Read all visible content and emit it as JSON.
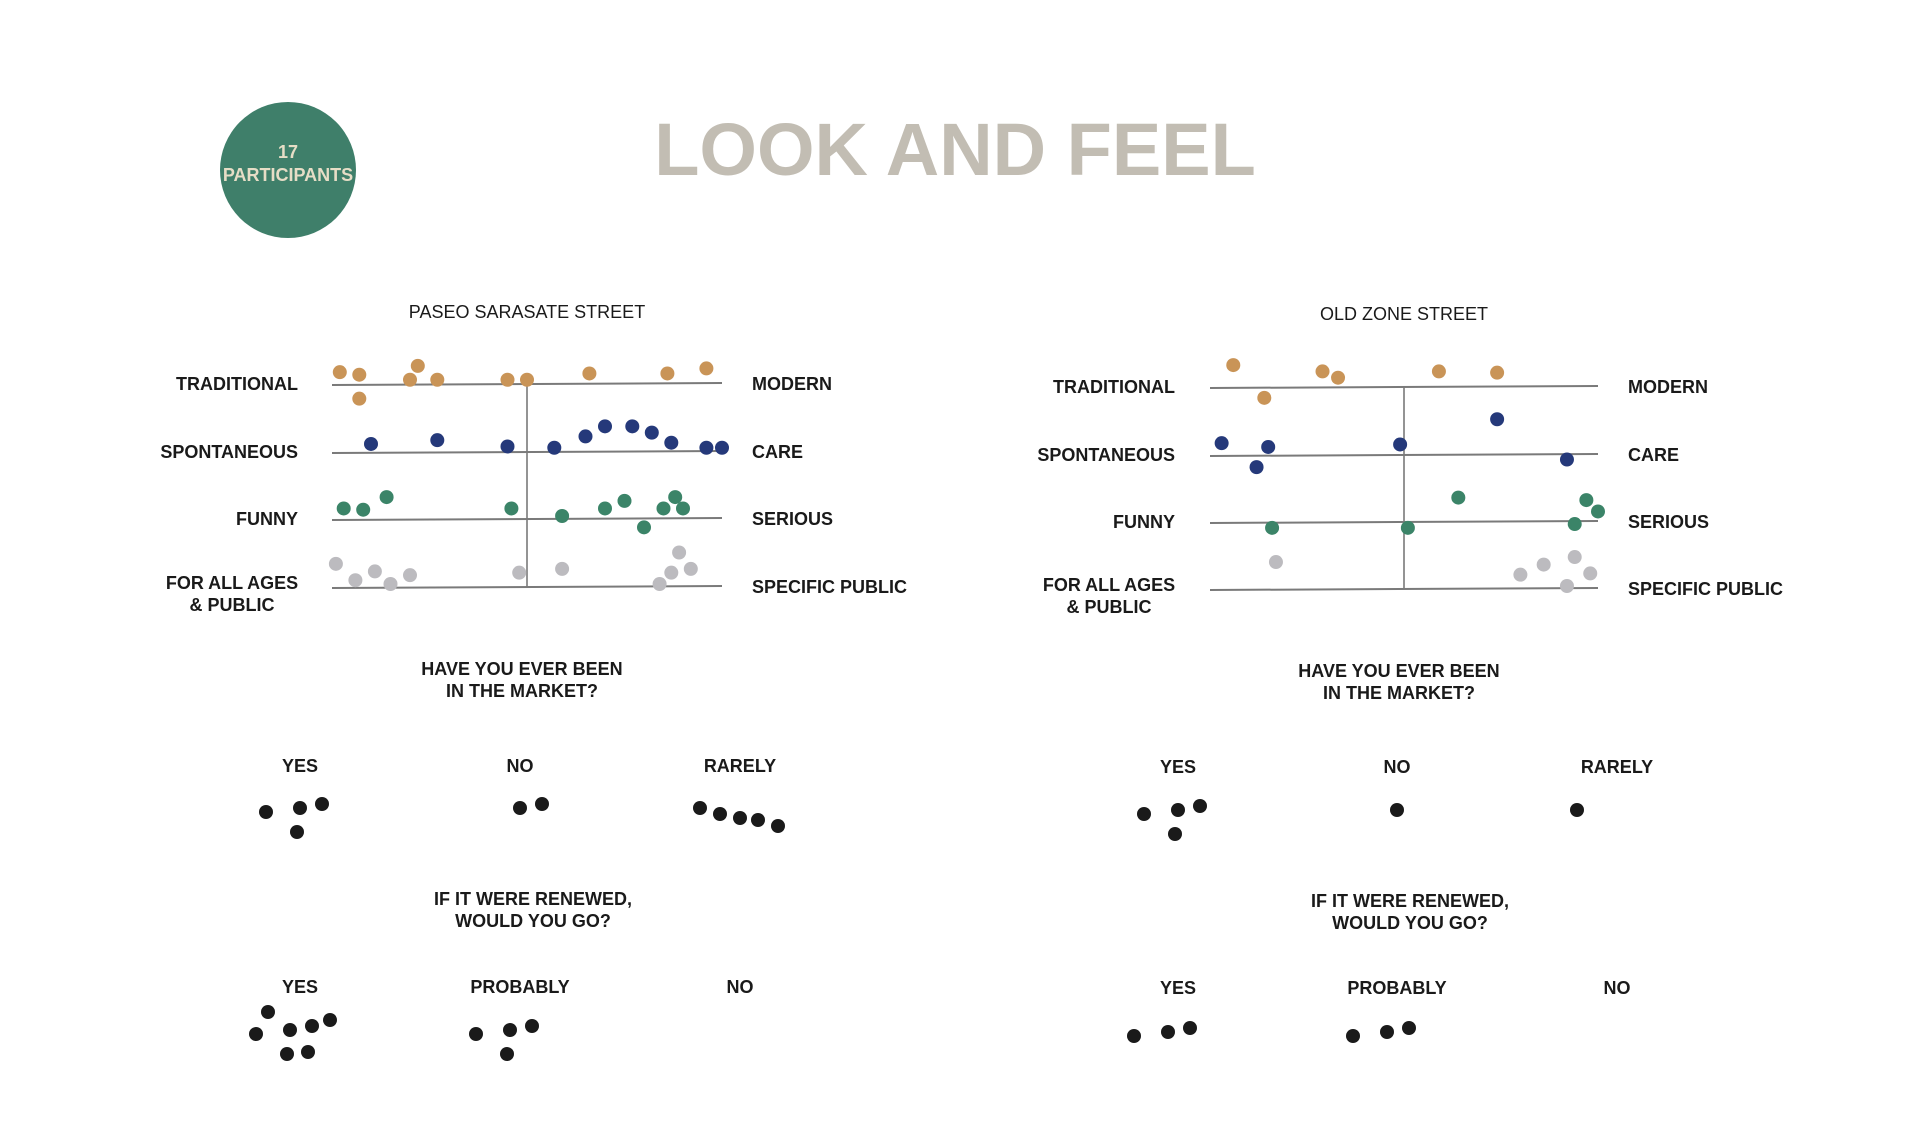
{
  "title": "LOOK AND FEEL",
  "badge": {
    "number": "17",
    "label": "PARTICIPANTS",
    "color": "#3f7f6a"
  },
  "colors": {
    "traditional_modern": "#c99457",
    "spontaneous_care": "#25397a",
    "funny_serious": "#3b8468",
    "ages_public": "#bcbbbf",
    "vote_dot": "#1a1a1a",
    "axis_line": "#7a7a7a",
    "title": "#c2bdb3"
  },
  "chart_data": [
    {
      "type": "scatter",
      "title": "PASEO SARASATE STREET",
      "x_range": [
        0,
        1
      ],
      "center_divider": true,
      "scales": [
        {
          "left": "TRADITIONAL",
          "right": "MODERN",
          "color_key": "traditional_modern",
          "points": [
            [
              0.02,
              0.7
            ],
            [
              0.07,
              0.5
            ],
            [
              0.07,
              -1.4
            ],
            [
              0.2,
              0.1
            ],
            [
              0.22,
              1.2
            ],
            [
              0.27,
              0.1
            ],
            [
              0.45,
              0.1
            ],
            [
              0.5,
              0.1
            ],
            [
              0.66,
              0.6
            ],
            [
              0.86,
              0.6
            ],
            [
              0.96,
              1.0
            ]
          ]
        },
        {
          "left": "SPONTANEOUS",
          "right": "CARE",
          "color_key": "spontaneous_care",
          "points": [
            [
              0.1,
              0.4
            ],
            [
              0.27,
              0.7
            ],
            [
              0.45,
              0.2
            ],
            [
              0.57,
              0.1
            ],
            [
              0.65,
              1.0
            ],
            [
              0.7,
              1.8
            ],
            [
              0.77,
              1.8
            ],
            [
              0.82,
              1.3
            ],
            [
              0.87,
              0.5
            ],
            [
              0.96,
              0.1
            ],
            [
              1.0,
              0.1
            ]
          ]
        },
        {
          "left": "FUNNY",
          "right": "SERIOUS",
          "color_key": "funny_serious",
          "points": [
            [
              0.03,
              0.6
            ],
            [
              0.08,
              0.5
            ],
            [
              0.14,
              1.5
            ],
            [
              0.46,
              0.6
            ],
            [
              0.59,
              0.0
            ],
            [
              0.7,
              0.6
            ],
            [
              0.75,
              1.2
            ],
            [
              0.8,
              -0.9
            ],
            [
              0.85,
              0.6
            ],
            [
              0.88,
              1.5
            ],
            [
              0.9,
              0.6
            ]
          ]
        },
        {
          "left": "FOR ALL AGES\n& PUBLIC",
          "right": "SPECIFIC PUBLIC",
          "color_key": "ages_public",
          "points": [
            [
              0.01,
              1.6
            ],
            [
              0.06,
              0.3
            ],
            [
              0.11,
              1.0
            ],
            [
              0.15,
              0.0
            ],
            [
              0.2,
              0.7
            ],
            [
              0.48,
              0.9
            ],
            [
              0.59,
              1.2
            ],
            [
              0.84,
              0.0
            ],
            [
              0.87,
              0.9
            ],
            [
              0.89,
              2.5
            ],
            [
              0.92,
              1.2
            ]
          ]
        }
      ]
    },
    {
      "type": "scatter",
      "title": "OLD ZONE STREET",
      "x_range": [
        0,
        1
      ],
      "center_divider": true,
      "scales": [
        {
          "left": "TRADITIONAL",
          "right": "MODERN",
          "color_key": "traditional_modern",
          "points": [
            [
              0.06,
              1.5
            ],
            [
              0.14,
              -1.1
            ],
            [
              0.29,
              1.0
            ],
            [
              0.33,
              0.5
            ],
            [
              0.59,
              1.0
            ],
            [
              0.74,
              0.9
            ]
          ]
        },
        {
          "left": "SPONTANEOUS",
          "right": "CARE",
          "color_key": "spontaneous_care",
          "points": [
            [
              0.03,
              0.7
            ],
            [
              0.12,
              -1.2
            ],
            [
              0.15,
              0.4
            ],
            [
              0.49,
              0.6
            ],
            [
              0.74,
              2.6
            ],
            [
              0.92,
              -0.6
            ]
          ]
        },
        {
          "left": "FUNNY",
          "right": "SERIOUS",
          "color_key": "funny_serious",
          "points": [
            [
              0.16,
              -0.7
            ],
            [
              0.51,
              -0.7
            ],
            [
              0.64,
              1.7
            ],
            [
              0.94,
              -0.4
            ],
            [
              0.97,
              1.5
            ],
            [
              1.0,
              0.6
            ]
          ]
        },
        {
          "left": "FOR ALL AGES\n& PUBLIC",
          "right": "SPECIFIC PUBLIC",
          "color_key": "ages_public",
          "points": [
            [
              0.17,
              1.9
            ],
            [
              0.8,
              0.9
            ],
            [
              0.86,
              1.7
            ],
            [
              0.92,
              0.0
            ],
            [
              0.94,
              2.3
            ],
            [
              0.98,
              1.0
            ]
          ]
        }
      ]
    }
  ],
  "surveys": [
    {
      "market_question": [
        "HAVE YOU EVER BEEN",
        "IN THE MARKET?"
      ],
      "market_answers": [
        {
          "label": "YES",
          "count": 4
        },
        {
          "label": "NO",
          "count": 2
        },
        {
          "label": "RARELY",
          "count": 5
        }
      ],
      "renew_question": [
        "IF IT WERE RENEWED,",
        "WOULD YOU GO?"
      ],
      "renew_answers": [
        {
          "label": "YES",
          "count": 7
        },
        {
          "label": "PROBABLY",
          "count": 4
        },
        {
          "label": "NO",
          "count": 0
        }
      ]
    },
    {
      "market_question": [
        "HAVE YOU EVER BEEN",
        "IN THE MARKET?"
      ],
      "market_answers": [
        {
          "label": "YES",
          "count": 4
        },
        {
          "label": "NO",
          "count": 1
        },
        {
          "label": "RARELY",
          "count": 1
        }
      ],
      "renew_question": [
        "IF IT WERE RENEWED,",
        "WOULD YOU GO?"
      ],
      "renew_answers": [
        {
          "label": "YES",
          "count": 3
        },
        {
          "label": "PROBABLY",
          "count": 3
        },
        {
          "label": "NO",
          "count": 0
        }
      ]
    }
  ]
}
